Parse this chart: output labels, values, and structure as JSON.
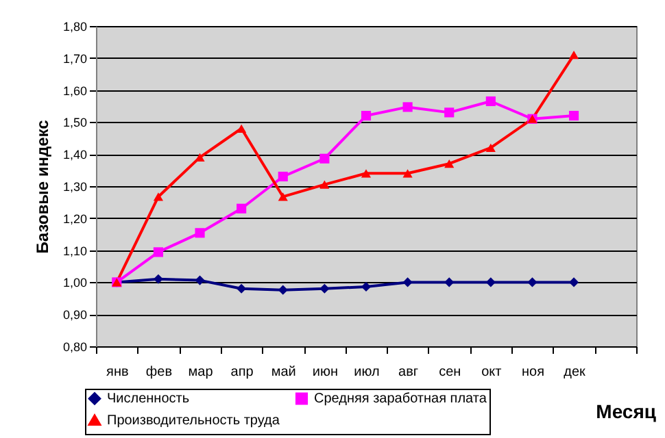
{
  "chart_data": {
    "type": "line",
    "ylabel": "Базовые индекс",
    "xlabel": "Месяц",
    "categories": [
      "янв",
      "фев",
      "мар",
      "апр",
      "май",
      "июн",
      "июл",
      "авг",
      "сен",
      "окт",
      "ноя",
      "дек",
      null
    ],
    "series": [
      {
        "name": "Численность",
        "color": "#000080",
        "marker": "diamond",
        "values": [
          1.0,
          1.01,
          1.006,
          0.98,
          0.976,
          0.98,
          0.986,
          1.0,
          1.0,
          1.0,
          1.0,
          1.0,
          null
        ]
      },
      {
        "name": "Средняя заработная плата",
        "color": "#ff00ff",
        "marker": "square",
        "values": [
          1.0,
          1.094,
          1.154,
          1.23,
          1.33,
          1.386,
          1.52,
          1.547,
          1.53,
          1.565,
          1.51,
          1.52,
          null
        ]
      },
      {
        "name": "Производительность труда",
        "color": "#ff0000",
        "marker": "triangle",
        "values": [
          1.0,
          1.267,
          1.39,
          1.48,
          1.267,
          1.305,
          1.34,
          1.34,
          1.37,
          1.42,
          1.51,
          1.71,
          null
        ]
      }
    ],
    "ylim": [
      0.8,
      1.8
    ],
    "yticks": [
      {
        "value": 0.8,
        "label": "0,80"
      },
      {
        "value": 0.9,
        "label": "0,90"
      },
      {
        "value": 1.0,
        "label": "1,00"
      },
      {
        "value": 1.1,
        "label": "1,10"
      },
      {
        "value": 1.2,
        "label": "1,20"
      },
      {
        "value": 1.3,
        "label": "1,30"
      },
      {
        "value": 1.4,
        "label": "1,40"
      },
      {
        "value": 1.5,
        "label": "1,50"
      },
      {
        "value": 1.6,
        "label": "1,60"
      },
      {
        "value": 1.7,
        "label": "1,70"
      },
      {
        "value": 1.8,
        "label": "1,80"
      }
    ],
    "grid": "y",
    "legend": "bottom",
    "line_style": "solid"
  }
}
